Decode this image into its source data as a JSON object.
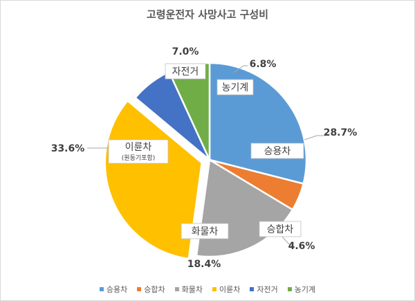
{
  "chart_data": {
    "type": "pie",
    "title": "고령운전자 사망사고 구성비",
    "categories": [
      "승용차",
      "승합차",
      "화물차",
      "이륜차",
      "자전거",
      "농기계"
    ],
    "values": [
      28.7,
      4.6,
      18.4,
      33.6,
      7.0,
      6.8
    ],
    "value_labels": [
      "28.7%",
      "4.6%",
      "18.4%",
      "33.6%",
      "7.0%",
      "6.8%"
    ],
    "category_sublabels": [
      "",
      "",
      "",
      "(원동기포함)",
      "",
      ""
    ],
    "colors": [
      "#5b9bd5",
      "#ed7d31",
      "#a5a5a5",
      "#ffc000",
      "#4472c4",
      "#70ad47"
    ],
    "exploded": [
      "이륜차"
    ],
    "legend_position": "bottom"
  }
}
